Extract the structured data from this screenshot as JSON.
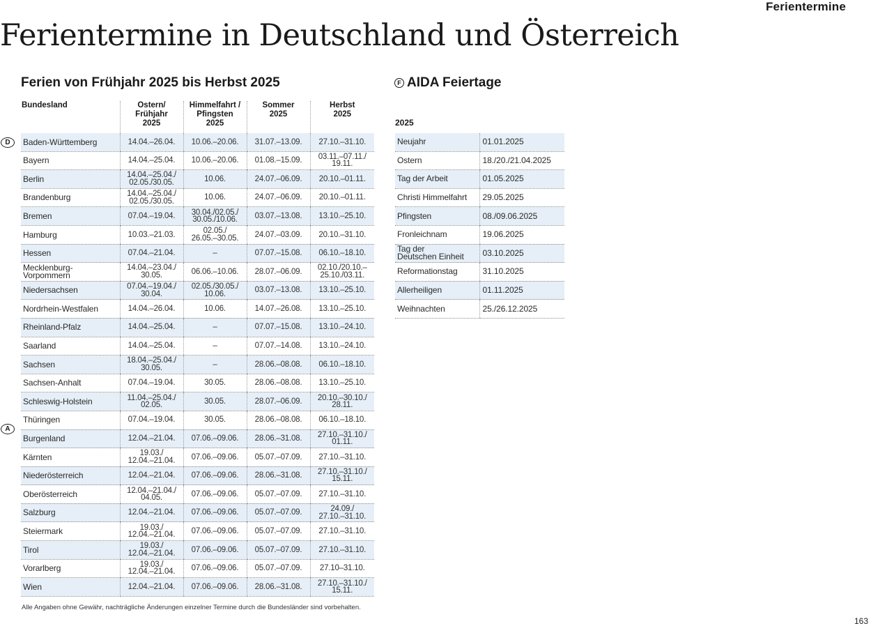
{
  "header": {
    "section_label": "Ferientermine",
    "title": "Ferientermine in Deutschland und Österreich"
  },
  "holidays": {
    "heading": "Ferien von Frühjahr 2025 bis Herbst 2025",
    "columns": [
      "Bundesland",
      "Ostern/\nFrühjahr\n2025",
      "Himmelfahrt /\nPfingsten\n2025",
      "Sommer\n2025",
      "Herbst\n2025"
    ],
    "markers": {
      "germany": "D",
      "austria": "A"
    },
    "rows": [
      [
        "Baden-Württemberg",
        "14.04.–26.04.",
        "10.06.–20.06.",
        "31.07.–13.09.",
        "27.10.–31.10."
      ],
      [
        "Bayern",
        "14.04.–25.04.",
        "10.06.–20.06.",
        "01.08.–15.09.",
        "03.11.–07.11./\n19.11."
      ],
      [
        "Berlin",
        "14.04.–25.04./\n02.05./30.05.",
        "10.06.",
        "24.07.–06.09.",
        "20.10.–01.11."
      ],
      [
        "Brandenburg",
        "14.04.–25.04./\n02.05./30.05.",
        "10.06.",
        "24.07.–06.09.",
        "20.10.–01.11."
      ],
      [
        "Bremen",
        "07.04.–19.04.",
        "30.04./02.05./\n30.05./10.06.",
        "03.07.–13.08.",
        "13.10.–25.10."
      ],
      [
        "Hamburg",
        "10.03.–21.03.",
        "02.05./\n26.05.–30.05.",
        "24.07.–03.09.",
        "20.10.–31.10."
      ],
      [
        "Hessen",
        "07.04.–21.04.",
        "–",
        "07.07.–15.08.",
        "06.10.–18.10."
      ],
      [
        "Mecklenburg-Vorpommern",
        "14.04.–23.04./\n30.05.",
        "06.06.–10.06.",
        "28.07.–06.09.",
        "02.10./20.10.–\n25.10./03.11."
      ],
      [
        "Niedersachsen",
        "07.04.–19.04./\n30.04.",
        "02.05./30.05./\n10.06.",
        "03.07.–13.08.",
        "13.10.–25.10."
      ],
      [
        "Nordrhein-Westfalen",
        "14.04.–26.04.",
        "10.06.",
        "14.07.–26.08.",
        "13.10.–25.10."
      ],
      [
        "Rheinland-Pfalz",
        "14.04.–25.04.",
        "–",
        "07.07.–15.08.",
        "13.10.–24.10."
      ],
      [
        "Saarland",
        "14.04.–25.04.",
        "–",
        "07.07.–14.08.",
        "13.10.–24.10."
      ],
      [
        "Sachsen",
        "18.04.–25.04./\n30.05.",
        "–",
        "28.06.–08.08.",
        "06.10.–18.10."
      ],
      [
        "Sachsen-Anhalt",
        "07.04.–19.04.",
        "30.05.",
        "28.06.–08.08.",
        "13.10.–25.10."
      ],
      [
        "Schleswig-Holstein",
        "11.04.–25.04./\n02.05.",
        "30.05.",
        "28.07.–06.09.",
        "20.10.–30.10./\n28.11."
      ],
      [
        "Thüringen",
        "07.04.–19.04.",
        "30.05.",
        "28.06.–08.08.",
        "06.10.–18.10."
      ],
      [
        "Burgenland",
        "12.04.–21.04.",
        "07.06.–09.06.",
        "28.06.–31.08.",
        "27.10.–31.10./\n01.11."
      ],
      [
        "Kärnten",
        "19.03./\n12.04.–21.04.",
        "07.06.–09.06.",
        "05.07.–07.09.",
        "27.10.–31.10."
      ],
      [
        "Niederösterreich",
        "12.04.–21.04.",
        "07.06.–09.06.",
        "28.06.–31.08.",
        "27.10.–31.10./\n15.11."
      ],
      [
        "Oberösterreich",
        "12.04.–21.04./\n04.05.",
        "07.06.–09.06.",
        "05.07.–07.09.",
        "27.10.–31.10."
      ],
      [
        "Salzburg",
        "12.04.–21.04.",
        "07.06.–09.06.",
        "05.07.–07.09.",
        "24.09./\n27.10.–31.10."
      ],
      [
        "Steiermark",
        "19.03./\n12.04.–21.04.",
        "07.06.–09.06.",
        "05.07.–07.09.",
        "27.10.–31.10."
      ],
      [
        "Tirol",
        "19.03./\n12.04.–21.04.",
        "07.06.–09.06.",
        "05.07.–07.09.",
        "27.10.–31.10."
      ],
      [
        "Vorarlberg",
        "19.03./\n12.04.–21.04.",
        "07.06.–09.06.",
        "05.07.–07.09.",
        "27.10–31.10."
      ],
      [
        "Wien",
        "12.04.–21.04.",
        "07.06.–09.06.",
        "28.06.–31.08.",
        "27.10.–31.10./\n15.11."
      ]
    ]
  },
  "feiertage": {
    "marker": "F",
    "heading": "AIDA Feiertage",
    "year": "2025",
    "rows": [
      [
        "Neujahr",
        "01.01.2025"
      ],
      [
        "Ostern",
        "18./20./21.04.2025"
      ],
      [
        "Tag der Arbeit",
        "01.05.2025"
      ],
      [
        "Christi Himmelfahrt",
        "29.05.2025"
      ],
      [
        "Pfingsten",
        "08./09.06.2025"
      ],
      [
        "Fronleichnam",
        "19.06.2025"
      ],
      [
        "Tag der\nDeutschen Einheit",
        "03.10.2025"
      ],
      [
        "Reformationstag",
        "31.10.2025"
      ],
      [
        "Allerheiligen",
        "01.11.2025"
      ],
      [
        "Weihnachten",
        "25./26.12.2025"
      ]
    ]
  },
  "footnote": "Alle Angaben ohne Gewähr, nachträgliche Änderungen einzelner Termine durch die Bundesländer sind vorbehalten.",
  "page_number": "163"
}
